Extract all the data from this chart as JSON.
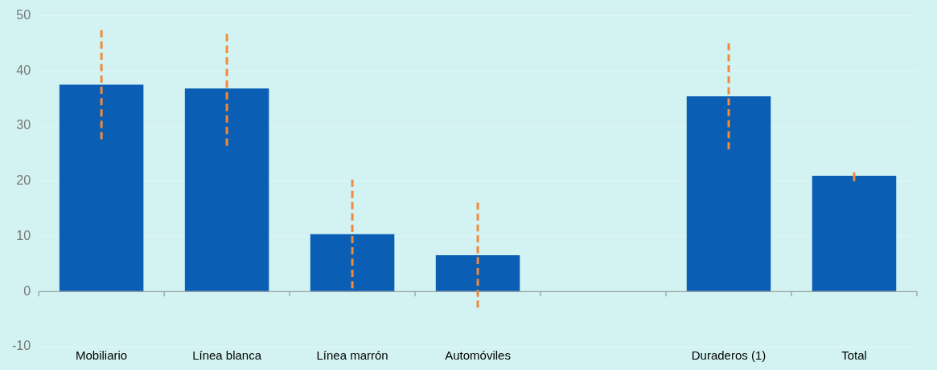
{
  "chart_data": {
    "type": "bar",
    "categories": [
      "Mobiliario",
      "Línea blanca",
      "Línea marrón",
      "Automóviles",
      null,
      "Duraderos (1)",
      "Total"
    ],
    "series": [
      {
        "color": "#0a5eb4",
        "values": [
          37.5,
          36.8,
          10.4,
          6.6,
          null,
          35.4,
          21.0
        ],
        "errors": [
          [
            27.6,
            47.4
          ],
          [
            26.4,
            46.7
          ],
          [
            0.6,
            20.3
          ],
          [
            -2.9,
            16.1
          ],
          null,
          [
            25.8,
            45
          ],
          [
            20.0,
            21.6
          ]
        ]
      }
    ],
    "ylim": [
      -10,
      50
    ],
    "yticks": [
      -10,
      0,
      10,
      20,
      30,
      40,
      50
    ],
    "grid": "y",
    "legend": false
  }
}
